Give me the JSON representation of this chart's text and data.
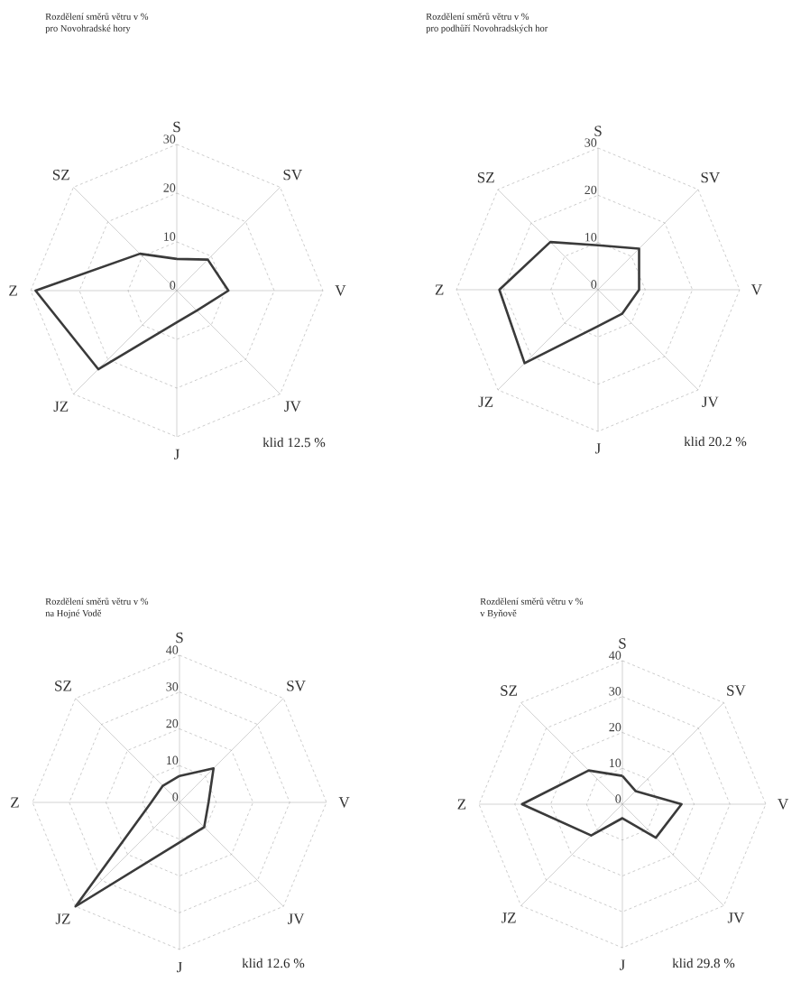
{
  "chart_data": [
    {
      "type": "radar",
      "title": "Rozdělení směrů větru v %",
      "subtitle": "pro Novohradské hory",
      "categories": [
        "S",
        "SV",
        "V",
        "JV",
        "J",
        "JZ",
        "Z",
        "SZ"
      ],
      "ylim": [
        0,
        30
      ],
      "yticks": [
        0,
        10,
        20,
        30
      ],
      "grid": true,
      "annotations": [
        "klid 12.5 %"
      ],
      "series": [
        {
          "color": "#3a3a3a",
          "values": [
            6.5,
            9,
            10.6,
            5.8,
            6.5,
            22.8,
            29,
            10.7
          ]
        }
      ]
    },
    {
      "type": "radar",
      "title": "Rozdělení směrů větru v %",
      "subtitle": "pro podhůří Novohradských hor",
      "categories": [
        "S",
        "SV",
        "V",
        "JV",
        "J",
        "JZ",
        "Z",
        "SZ"
      ],
      "ylim": [
        0,
        30
      ],
      "yticks": [
        0,
        10,
        20,
        30
      ],
      "grid": true,
      "annotations": [
        "klid  20.2 %"
      ],
      "series": [
        {
          "color": "#3a3a3a",
          "values": [
            9.4,
            12.3,
            8.7,
            7.2,
            7.7,
            22,
            20.9,
            14.3
          ]
        }
      ]
    },
    {
      "type": "radar",
      "title": "Rozdělení směrů větru v %",
      "subtitle": "na Hojné Vodě",
      "categories": [
        "S",
        "SV",
        "V",
        "JV",
        "J",
        "JZ",
        "Z",
        "SZ"
      ],
      "ylim": [
        0,
        40
      ],
      "yticks": [
        0,
        10,
        20,
        30,
        40
      ],
      "grid": true,
      "annotations": [
        "klid 12.6 %"
      ],
      "series": [
        {
          "color": "#3a3a3a",
          "values": [
            7.2,
            13.1,
            7.9,
            9.5,
            10.9,
            40,
            7.7,
            6.4
          ]
        }
      ]
    },
    {
      "type": "radar",
      "title": "Rozdělení směrů větru v %",
      "subtitle": "v Byňově",
      "categories": [
        "S",
        "SV",
        "V",
        "JV",
        "J",
        "JZ",
        "Z",
        "SZ"
      ],
      "ylim": [
        0,
        40
      ],
      "yticks": [
        0,
        10,
        20,
        30,
        40
      ],
      "grid": true,
      "annotations": [
        "klid 29.8 %"
      ],
      "series": [
        {
          "color": "#3a3a3a",
          "values": [
            7.9,
            5.2,
            16.5,
            13.2,
            3.9,
            12.3,
            28,
            13.3
          ]
        }
      ]
    }
  ]
}
